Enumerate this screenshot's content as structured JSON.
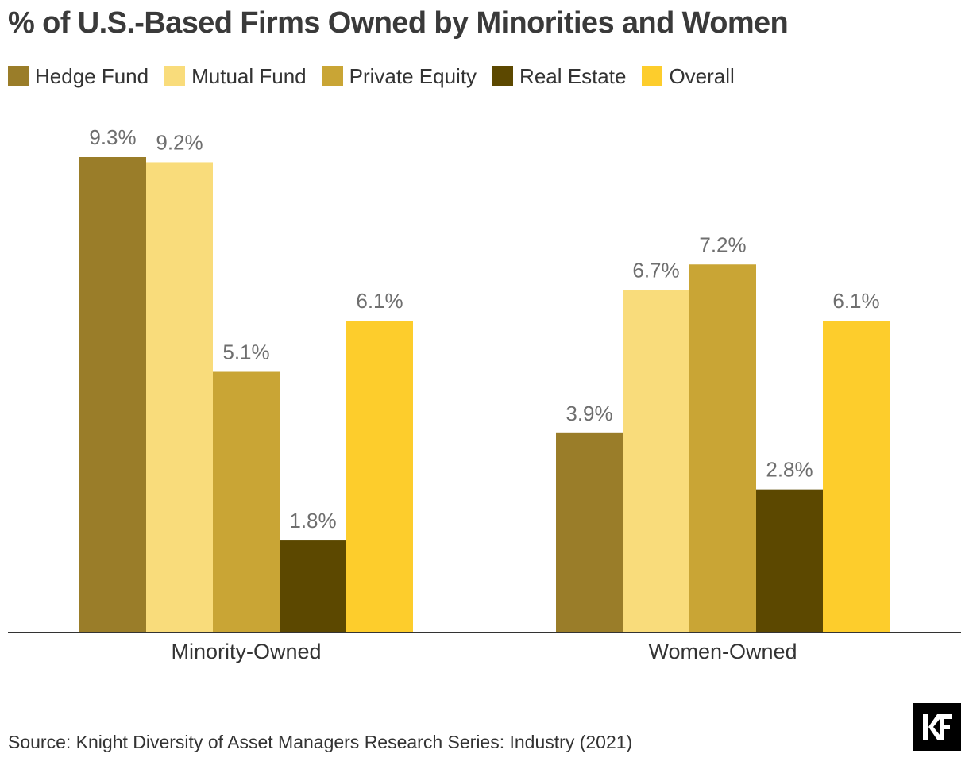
{
  "title": "% of U.S.-Based Firms Owned by Minorities and Women",
  "source": "Source: Knight Diversity of Asset Managers Research Series: Industry (2021)",
  "logo_text": "KF",
  "chart_data": {
    "type": "bar",
    "title": "% of U.S.-Based Firms Owned by Minorities and Women",
    "categories": [
      "Minority-Owned",
      "Women-Owned"
    ],
    "series": [
      {
        "name": "Hedge Fund",
        "color": "#9a7d29",
        "values": [
          9.3,
          3.9
        ],
        "labels": [
          "9.3%",
          "3.9%"
        ]
      },
      {
        "name": "Mutual Fund",
        "color": "#f9dc7b",
        "values": [
          9.2,
          6.7
        ],
        "labels": [
          "9.2%",
          "6.7%"
        ]
      },
      {
        "name": "Private Equity",
        "color": "#c9a535",
        "values": [
          5.1,
          7.2
        ],
        "labels": [
          "5.1%",
          "7.2%"
        ]
      },
      {
        "name": "Real Estate",
        "color": "#5c4800",
        "values": [
          1.8,
          2.8
        ],
        "labels": [
          "1.8%",
          "2.8%"
        ]
      },
      {
        "name": "Overall",
        "color": "#fdcd2c",
        "values": [
          6.1,
          6.1
        ],
        "labels": [
          "6.1%",
          "6.1%"
        ]
      }
    ],
    "xlabel": "",
    "ylabel": "",
    "ylim": [
      0,
      9.3
    ],
    "grid": false,
    "legend": "top-left"
  }
}
